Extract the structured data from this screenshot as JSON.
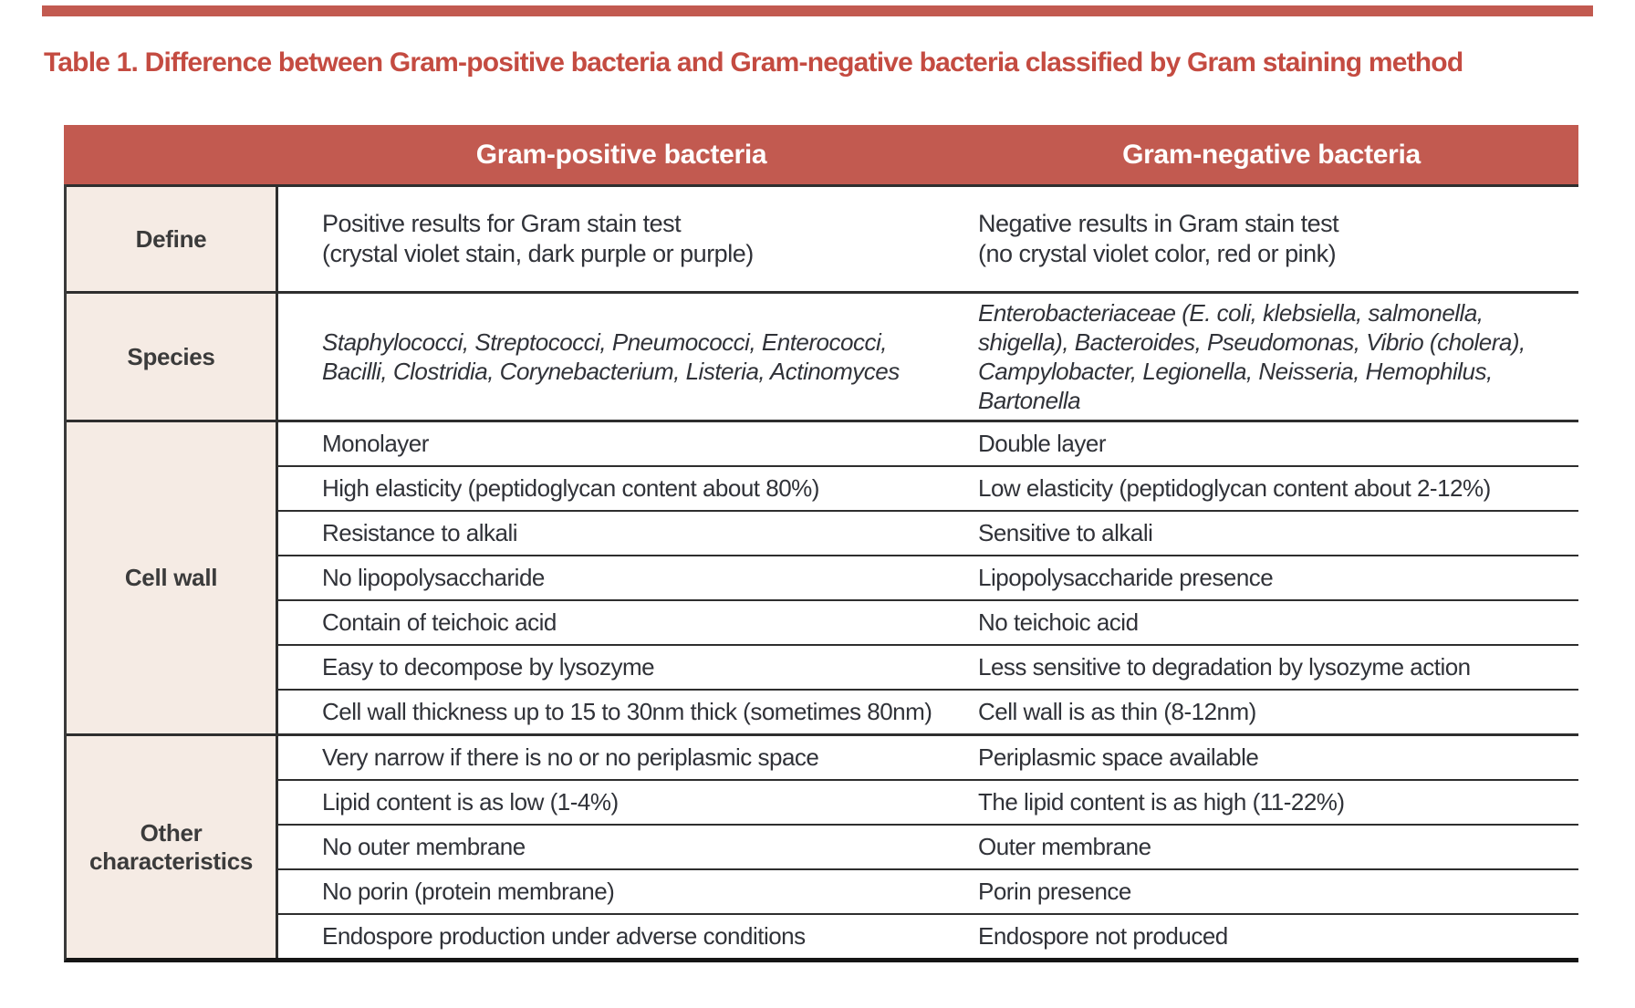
{
  "title": "Table 1. Difference between Gram-positive bacteria and Gram-negative bacteria classified by Gram staining method",
  "colors": {
    "accent": "#c25a50",
    "title_text": "#c44b41",
    "header_text": "#ffffff",
    "label_bg": "#f5ebe4",
    "body_text": "#303238",
    "border": "#2e2e2e"
  },
  "table": {
    "columns": {
      "positive": "Gram-positive bacteria",
      "negative": "Gram-negative bacteria"
    },
    "sections": [
      {
        "label": "Define",
        "rows": [
          {
            "positive": "Positive results for Gram stain test\n(crystal violet stain, dark purple or purple)",
            "negative": "Negative results in Gram stain test\n(no crystal violet color, red or pink)"
          }
        ]
      },
      {
        "label": "Species",
        "rows": [
          {
            "positive": "Staphylococci, Streptococci, Pneumococci, Enterococci,\nBacilli, Clostridia, Corynebacterium, Listeria, Actinomyces",
            "negative": "Enterobacteriaceae (E. coli, klebsiella, salmonella,\nshigella), Bacteroides, Pseudomonas, Vibrio (cholera),\nCampylobacter, Legionella, Neisseria, Hemophilus,\nBartonella"
          }
        ]
      },
      {
        "label": "Cell wall",
        "rows": [
          {
            "positive": "Monolayer",
            "negative": "Double layer"
          },
          {
            "positive": "High elasticity (peptidoglycan content about 80%)",
            "negative": "Low elasticity (peptidoglycan content about 2-12%)"
          },
          {
            "positive": "Resistance to alkali",
            "negative": "Sensitive to alkali"
          },
          {
            "positive": "No lipopolysaccharide",
            "negative": "Lipopolysaccharide presence"
          },
          {
            "positive": "Contain of teichoic acid",
            "negative": "No teichoic acid"
          },
          {
            "positive": "Easy to decompose by lysozyme",
            "negative": "Less sensitive to degradation by lysozyme action"
          },
          {
            "positive": "Cell wall thickness up to 15 to 30nm thick (sometimes 80nm)",
            "negative": "Cell wall is as thin (8-12nm)"
          }
        ]
      },
      {
        "label": "Other characteristics",
        "rows": [
          {
            "positive": "Very narrow if there is no or no periplasmic space",
            "negative": "Periplasmic space available"
          },
          {
            "positive": "Lipid content is as low (1-4%)",
            "negative": "The lipid content is as high (11-22%)"
          },
          {
            "positive": "No outer membrane",
            "negative": "Outer membrane"
          },
          {
            "positive": "No porin (protein membrane)",
            "negative": "Porin presence"
          },
          {
            "positive": "Endospore production under adverse conditions",
            "negative": "Endospore not produced"
          }
        ]
      }
    ]
  }
}
